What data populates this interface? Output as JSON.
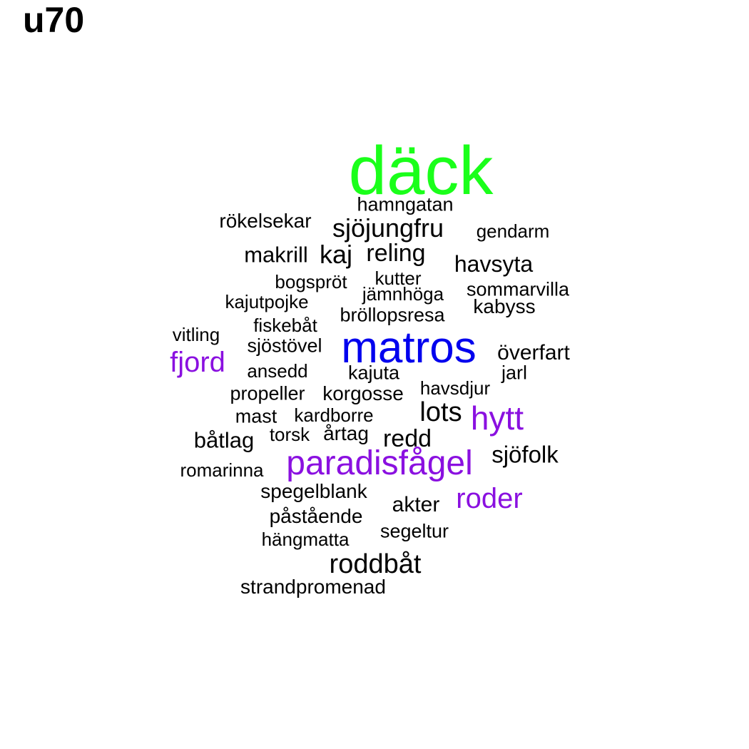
{
  "title": "u70",
  "colors": {
    "green": "#1aff1a",
    "blue": "#0000ee",
    "purple": "#8a10e0",
    "black": "#000000"
  },
  "words": [
    {
      "text": "däck",
      "color": "green"
    },
    {
      "text": "hamngatan",
      "color": "black"
    },
    {
      "text": "rökelsekar",
      "color": "black"
    },
    {
      "text": "sjöjungfru",
      "color": "black"
    },
    {
      "text": "gendarm",
      "color": "black"
    },
    {
      "text": "makrill",
      "color": "black"
    },
    {
      "text": "kaj",
      "color": "black"
    },
    {
      "text": "reling",
      "color": "black"
    },
    {
      "text": "havsyta",
      "color": "black"
    },
    {
      "text": "bogspröt",
      "color": "black"
    },
    {
      "text": "kutter",
      "color": "black"
    },
    {
      "text": "jämnhöga",
      "color": "black"
    },
    {
      "text": "sommarvilla",
      "color": "black"
    },
    {
      "text": "kajutpojke",
      "color": "black"
    },
    {
      "text": "kabyss",
      "color": "black"
    },
    {
      "text": "bröllopsresa",
      "color": "black"
    },
    {
      "text": "fiskebåt",
      "color": "black"
    },
    {
      "text": "vitling",
      "color": "black"
    },
    {
      "text": "sjöstövel",
      "color": "black"
    },
    {
      "text": "matros",
      "color": "blue"
    },
    {
      "text": "överfart",
      "color": "black"
    },
    {
      "text": "fjord",
      "color": "purple"
    },
    {
      "text": "ansedd",
      "color": "black"
    },
    {
      "text": "kajuta",
      "color": "black"
    },
    {
      "text": "jarl",
      "color": "black"
    },
    {
      "text": "propeller",
      "color": "black"
    },
    {
      "text": "korgosse",
      "color": "black"
    },
    {
      "text": "havsdjur",
      "color": "black"
    },
    {
      "text": "lots",
      "color": "black"
    },
    {
      "text": "mast",
      "color": "black"
    },
    {
      "text": "kardborre",
      "color": "black"
    },
    {
      "text": "hytt",
      "color": "purple"
    },
    {
      "text": "båtlag",
      "color": "black"
    },
    {
      "text": "torsk",
      "color": "black"
    },
    {
      "text": "årtag",
      "color": "black"
    },
    {
      "text": "redd",
      "color": "black"
    },
    {
      "text": "sjöfolk",
      "color": "black"
    },
    {
      "text": "paradisfågel",
      "color": "purple"
    },
    {
      "text": "romarinna",
      "color": "black"
    },
    {
      "text": "spegelblank",
      "color": "black"
    },
    {
      "text": "akter",
      "color": "black"
    },
    {
      "text": "roder",
      "color": "purple"
    },
    {
      "text": "påstående",
      "color": "black"
    },
    {
      "text": "segeltur",
      "color": "black"
    },
    {
      "text": "hängmatta",
      "color": "black"
    },
    {
      "text": "roddbåt",
      "color": "black"
    },
    {
      "text": "strandpromenad",
      "color": "black"
    }
  ]
}
